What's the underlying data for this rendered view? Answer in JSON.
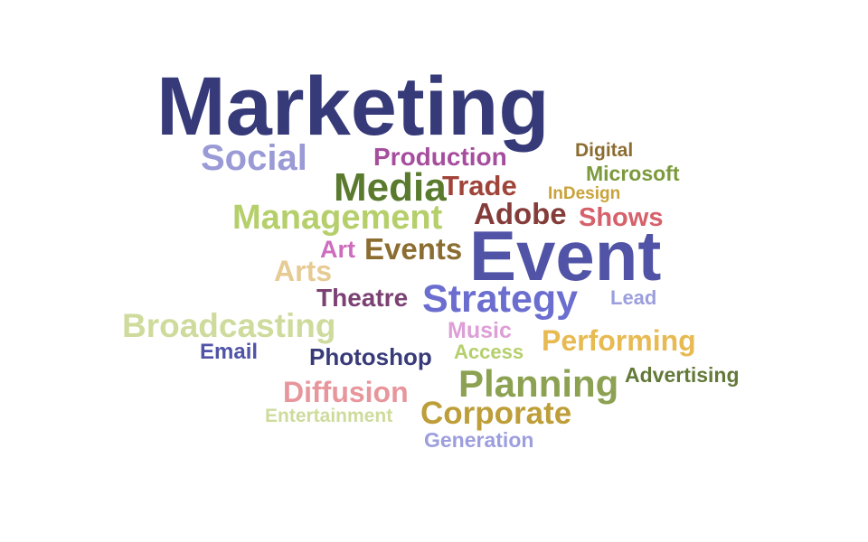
{
  "words": {
    "marketing": {
      "text": "Marketing",
      "color": "#363a78"
    },
    "social": {
      "text": "Social",
      "color": "#9a9ad6"
    },
    "production": {
      "text": "Production",
      "color": "#a64d9e"
    },
    "digital": {
      "text": "Digital",
      "color": "#8c6d31"
    },
    "microsoft": {
      "text": "Microsoft",
      "color": "#7c9a3c"
    },
    "media": {
      "text": "Media",
      "color": "#5a7a2e"
    },
    "trade": {
      "text": "Trade",
      "color": "#a0443a"
    },
    "indesign": {
      "text": "InDesign",
      "color": "#c9a23a"
    },
    "management": {
      "text": "Management",
      "color": "#b5cf6b"
    },
    "adobe": {
      "text": "Adobe",
      "color": "#843c39"
    },
    "shows": {
      "text": "Shows",
      "color": "#d6616b"
    },
    "event": {
      "text": "Event",
      "color": "#5154a6"
    },
    "art": {
      "text": "Art",
      "color": "#ce6dbd"
    },
    "events": {
      "text": "Events",
      "color": "#8c6d31"
    },
    "arts": {
      "text": "Arts",
      "color": "#e7cb94"
    },
    "theatre": {
      "text": "Theatre",
      "color": "#7b4173"
    },
    "strategy": {
      "text": "Strategy",
      "color": "#6b6ecf"
    },
    "lead": {
      "text": "Lead",
      "color": "#9c9ede"
    },
    "broadcasting": {
      "text": "Broadcasting",
      "color": "#cedb9c"
    },
    "music": {
      "text": "Music",
      "color": "#de9ed6"
    },
    "performing": {
      "text": "Performing",
      "color": "#e7ba52"
    },
    "email": {
      "text": "Email",
      "color": "#5154a6"
    },
    "photoshop": {
      "text": "Photoshop",
      "color": "#393b79"
    },
    "access": {
      "text": "Access",
      "color": "#b5cf6b"
    },
    "advertising": {
      "text": "Advertising",
      "color": "#637939"
    },
    "planning": {
      "text": "Planning",
      "color": "#8ca252"
    },
    "diffusion": {
      "text": "Diffusion",
      "color": "#e7969c"
    },
    "corporate": {
      "text": "Corporate",
      "color": "#bd9e39"
    },
    "entertainment": {
      "text": "Entertainment",
      "color": "#cedb9c"
    },
    "generation": {
      "text": "Generation",
      "color": "#9c9ede"
    }
  }
}
